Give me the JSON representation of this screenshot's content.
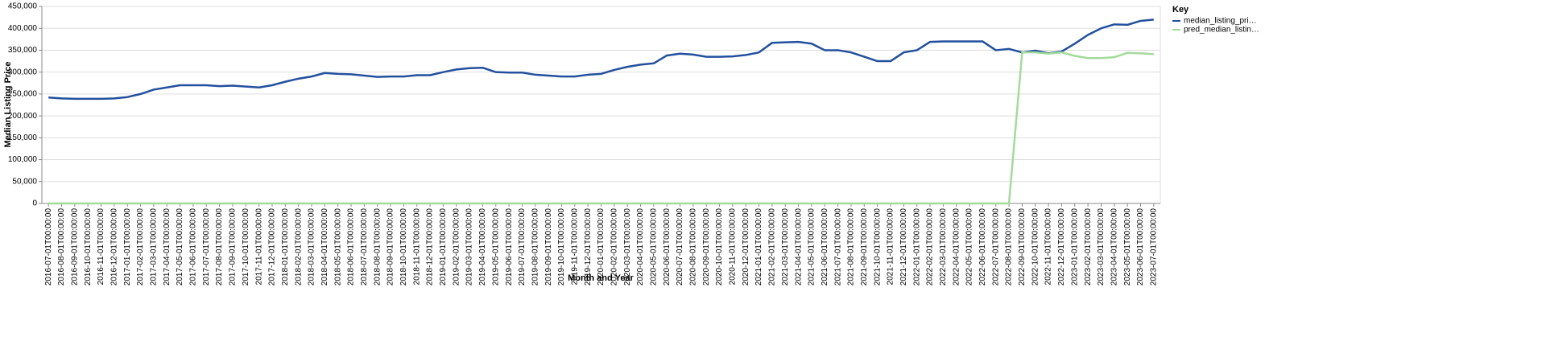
{
  "chart_data": {
    "type": "line",
    "x_label": "Month and Year",
    "y_label": "Median Listing Price",
    "legend_title": "Key",
    "legend_position": "right",
    "grid": true,
    "categories": [
      "2016-07-01T00:00:00",
      "2016-08-01T00:00:00",
      "2016-09-01T00:00:00",
      "2016-10-01T00:00:00",
      "2016-11-01T00:00:00",
      "2016-12-01T00:00:00",
      "2017-01-01T00:00:00",
      "2017-02-01T00:00:00",
      "2017-03-01T00:00:00",
      "2017-04-01T00:00:00",
      "2017-05-01T00:00:00",
      "2017-06-01T00:00:00",
      "2017-07-01T00:00:00",
      "2017-08-01T00:00:00",
      "2017-09-01T00:00:00",
      "2017-10-01T00:00:00",
      "2017-11-01T00:00:00",
      "2017-12-01T00:00:00",
      "2018-01-01T00:00:00",
      "2018-02-01T00:00:00",
      "2018-03-01T00:00:00",
      "2018-04-01T00:00:00",
      "2018-05-01T00:00:00",
      "2018-06-01T00:00:00",
      "2018-07-01T00:00:00",
      "2018-08-01T00:00:00",
      "2018-09-01T00:00:00",
      "2018-10-01T00:00:00",
      "2018-11-01T00:00:00",
      "2018-12-01T00:00:00",
      "2019-01-01T00:00:00",
      "2019-02-01T00:00:00",
      "2019-03-01T00:00:00",
      "2019-04-01T00:00:00",
      "2019-05-01T00:00:00",
      "2019-06-01T00:00:00",
      "2019-07-01T00:00:00",
      "2019-08-01T00:00:00",
      "2019-09-01T00:00:00",
      "2019-10-01T00:00:00",
      "2019-11-01T00:00:00",
      "2019-12-01T00:00:00",
      "2020-01-01T00:00:00",
      "2020-02-01T00:00:00",
      "2020-03-01T00:00:00",
      "2020-04-01T00:00:00",
      "2020-05-01T00:00:00",
      "2020-06-01T00:00:00",
      "2020-07-01T00:00:00",
      "2020-08-01T00:00:00",
      "2020-09-01T00:00:00",
      "2020-10-01T00:00:00",
      "2020-11-01T00:00:00",
      "2020-12-01T00:00:00",
      "2021-01-01T00:00:00",
      "2021-02-01T00:00:00",
      "2021-03-01T00:00:00",
      "2021-04-01T00:00:00",
      "2021-05-01T00:00:00",
      "2021-06-01T00:00:00",
      "2021-07-01T00:00:00",
      "2021-08-01T00:00:00",
      "2021-09-01T00:00:00",
      "2021-10-01T00:00:00",
      "2021-11-01T00:00:00",
      "2021-12-01T00:00:00",
      "2022-01-01T00:00:00",
      "2022-02-01T00:00:00",
      "2022-03-01T00:00:00",
      "2022-04-01T00:00:00",
      "2022-05-01T00:00:00",
      "2022-06-01T00:00:00",
      "2022-07-01T00:00:00",
      "2022-08-01T00:00:00",
      "2022-09-01T00:00:00",
      "2022-10-01T00:00:00",
      "2022-11-01T00:00:00",
      "2022-12-01T00:00:00",
      "2023-01-01T00:00:00",
      "2023-02-01T00:00:00",
      "2023-03-01T00:00:00",
      "2023-04-01T00:00:00",
      "2023-05-01T00:00:00",
      "2023-06-01T00:00:00",
      "2023-07-01T00:00:00"
    ],
    "series": [
      {
        "name": "median_listing_pri…",
        "color": "#22509e",
        "values": [
          242000,
          240000,
          239000,
          239000,
          239000,
          240000,
          243000,
          250000,
          260000,
          265000,
          270000,
          270000,
          270000,
          268000,
          269000,
          267000,
          265000,
          270000,
          278000,
          285000,
          290000,
          298000,
          296000,
          295000,
          292000,
          289000,
          290000,
          290000,
          293000,
          293000,
          300000,
          306000,
          309000,
          310000,
          300000,
          299000,
          299000,
          294000,
          292000,
          290000,
          290000,
          294000,
          296000,
          305000,
          312000,
          317000,
          320000,
          338000,
          342000,
          340000,
          335000,
          335000,
          336000,
          339000,
          345000,
          367000,
          368000,
          369000,
          365000,
          350000,
          350000,
          345000,
          335000,
          325000,
          325000,
          345000,
          350000,
          369000,
          370000,
          370000,
          370000,
          370000,
          350000,
          353000,
          345000,
          349000,
          343000,
          347000,
          365000,
          385000,
          400000,
          409000,
          408000,
          417000,
          420000
        ]
      },
      {
        "name": "pred_median_listin…",
        "color": "#a2db9a",
        "values": [
          0,
          0,
          0,
          0,
          0,
          0,
          0,
          0,
          0,
          0,
          0,
          0,
          0,
          0,
          0,
          0,
          0,
          0,
          0,
          0,
          0,
          0,
          0,
          0,
          0,
          0,
          0,
          0,
          0,
          0,
          0,
          0,
          0,
          0,
          0,
          0,
          0,
          0,
          0,
          0,
          0,
          0,
          0,
          0,
          0,
          0,
          0,
          0,
          0,
          0,
          0,
          0,
          0,
          0,
          0,
          0,
          0,
          0,
          0,
          0,
          0,
          0,
          0,
          0,
          0,
          0,
          0,
          0,
          0,
          0,
          0,
          0,
          0,
          0,
          345000,
          345000,
          342000,
          345000,
          337000,
          332000,
          332000,
          334000,
          344000,
          343000,
          341000
        ]
      }
    ],
    "ylim": [
      0,
      450000
    ],
    "yticks": [
      0,
      {
        "value": 50000,
        "label": "50,000"
      },
      {
        "value": 100000,
        "label": "100,000"
      },
      {
        "value": 150000,
        "label": "150,000"
      },
      {
        "value": 200000,
        "label": "200,000"
      },
      {
        "value": 250000,
        "label": "250,000"
      },
      {
        "value": 300000,
        "label": "300,000"
      },
      {
        "value": 350000,
        "label": "350,000"
      },
      {
        "value": 400000,
        "label": "400,000"
      },
      {
        "value": 450000,
        "label": "450,000"
      }
    ]
  }
}
